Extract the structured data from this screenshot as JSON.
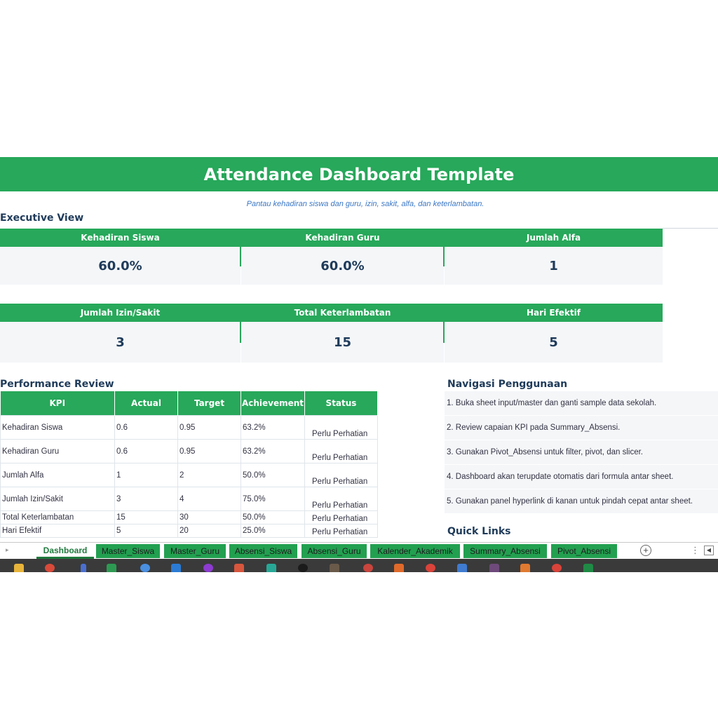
{
  "header": {
    "title": "Attendance Dashboard Template",
    "subtitle": "Pantau kehadiran siswa dan guru, izin, sakit, alfa, dan keterlambatan."
  },
  "executive": {
    "title": "Executive View",
    "cards_row1": [
      {
        "label": "Kehadiran Siswa",
        "value": "60.0%"
      },
      {
        "label": "Kehadiran Guru",
        "value": "60.0%"
      },
      {
        "label": "Jumlah Alfa",
        "value": "1"
      }
    ],
    "cards_row2": [
      {
        "label": "Jumlah Izin/Sakit",
        "value": "3"
      },
      {
        "label": "Total Keterlambatan",
        "value": "15"
      },
      {
        "label": "Hari Efektif",
        "value": "5"
      }
    ]
  },
  "performance": {
    "title": "Performance Review",
    "columns": [
      "KPI",
      "Actual",
      "Target",
      "Achievement",
      "Status"
    ],
    "rows": [
      [
        "Kehadiran Siswa",
        "0.6",
        "0.95",
        "63.2%",
        "Perlu Perhatian"
      ],
      [
        "Kehadiran Guru",
        "0.6",
        "0.95",
        "63.2%",
        "Perlu Perhatian"
      ],
      [
        "Jumlah Alfa",
        "1",
        "2",
        "50.0%",
        "Perlu Perhatian"
      ],
      [
        "Jumlah Izin/Sakit",
        "3",
        "4",
        "75.0%",
        "Perlu Perhatian"
      ],
      [
        "Total Keterlambatan",
        "15",
        "30",
        "50.0%",
        "Perlu Perhatian"
      ],
      [
        "Hari Efektif",
        "5",
        "20",
        "25.0%",
        "Perlu Perhatian"
      ]
    ]
  },
  "navigation": {
    "title": "Navigasi Penggunaan",
    "items": [
      "1. Buka sheet input/master dan ganti sample data sekolah.",
      "2. Review capaian KPI pada Summary_Absensi.",
      "3. Gunakan Pivot_Absensi untuk filter, pivot, dan slicer.",
      "4. Dashboard akan terupdate otomatis dari formula antar sheet.",
      "5. Gunakan panel hyperlink di kanan untuk pindah cepat antar sheet."
    ]
  },
  "quick_links": {
    "title": "Quick Links"
  },
  "sheet_tabs": [
    {
      "label": "Dashboard",
      "active": true
    },
    {
      "label": "Master_Siswa",
      "active": false
    },
    {
      "label": "Master_Guru",
      "active": false
    },
    {
      "label": "Absensi_Siswa",
      "active": false
    },
    {
      "label": "Absensi_Guru",
      "active": false
    },
    {
      "label": "Kalender_Akademik",
      "active": false
    },
    {
      "label": "Summary_Absensi",
      "active": false
    },
    {
      "label": "Pivot_Absensi",
      "active": false
    }
  ],
  "icons": {
    "add_sheet": "plus-circle-icon",
    "more": "vertical-dots-icon",
    "scroll": "scroll-left-icon"
  },
  "colors": {
    "accent": "#27a85a",
    "title_text": "#1f3b5a",
    "subtitle_text": "#3b77c4",
    "card_bg": "#f4f6f8"
  }
}
